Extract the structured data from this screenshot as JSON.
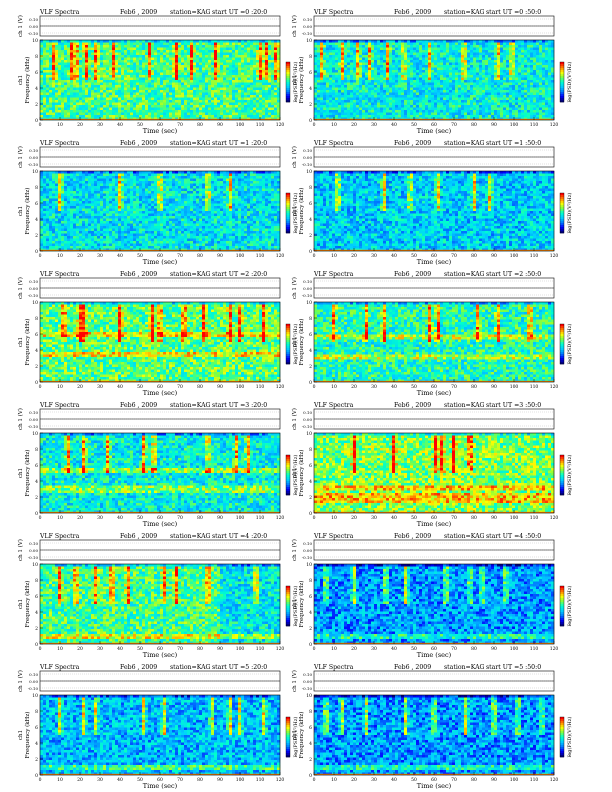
{
  "header": {
    "instrument": "VLF Spectra",
    "date": "Feb6 , 2009",
    "station": "station=KAG"
  },
  "labels": {
    "ch_axis": "ch 1 (V)",
    "freq_axis_top": "ch1",
    "freq_axis": "Frequency (kHz)",
    "time_axis": "Time (sec)",
    "colorbar": "log(PSD)(V²/Hz)",
    "colorbar_min": "-7"
  },
  "colors": {
    "background": "#2a78c8",
    "colormap": [
      "#000080",
      "#0000ff",
      "#0080ff",
      "#00d0ff",
      "#00ffcc",
      "#80ff40",
      "#ffff00",
      "#ff8000",
      "#ff0000"
    ]
  },
  "chart_data": [
    {
      "type": "heatmap",
      "start_ut": "start UT =0 :20:0",
      "xlabel": "Time (sec)",
      "ylabel": "Frequency (kHz)",
      "xlim": [
        0,
        120
      ],
      "ylim": [
        0,
        10
      ],
      "xticks": [
        0,
        10,
        20,
        30,
        40,
        50,
        60,
        70,
        80,
        90,
        100,
        110,
        120
      ],
      "yticks": [
        0,
        2,
        4,
        6,
        8,
        10
      ],
      "ch_ticks": [
        "0.10",
        "0.00",
        "-0.10"
      ],
      "intensity": 0.55,
      "red_burst_times": [
        7,
        16,
        18,
        23,
        28,
        37,
        55,
        68,
        76,
        88,
        110,
        113,
        118
      ]
    },
    {
      "type": "heatmap",
      "start_ut": "start UT =0 :50:0",
      "xlabel": "Time (sec)",
      "ylabel": "Frequency (kHz)",
      "xlim": [
        0,
        120
      ],
      "ylim": [
        0,
        10
      ],
      "xticks": [
        0,
        10,
        20,
        30,
        40,
        50,
        60,
        70,
        80,
        90,
        100,
        110,
        120
      ],
      "yticks": [
        0,
        2,
        4,
        6,
        8,
        10
      ],
      "ch_ticks": [
        "0.10",
        "0.00",
        "-0.10"
      ],
      "intensity": 0.45,
      "red_burst_times": [
        4,
        14,
        22,
        28,
        37,
        45,
        58,
        75,
        92,
        99
      ]
    },
    {
      "type": "heatmap",
      "start_ut": "start UT =1 :20:0",
      "xlabel": "Time (sec)",
      "ylabel": "Frequency (kHz)",
      "xlim": [
        0,
        120
      ],
      "ylim": [
        0,
        10
      ],
      "xticks": [
        0,
        10,
        20,
        30,
        40,
        50,
        60,
        70,
        80,
        90,
        100,
        110,
        120
      ],
      "yticks": [
        0,
        2,
        4,
        6,
        8,
        10
      ],
      "ch_ticks": [
        "0.10",
        "0.00",
        "-0.10"
      ],
      "intensity": 0.42,
      "red_burst_times": [
        10,
        40,
        60,
        84,
        95
      ]
    },
    {
      "type": "heatmap",
      "start_ut": "start UT =1 :50:0",
      "xlabel": "Time (sec)",
      "ylabel": "Frequency (kHz)",
      "xlim": [
        0,
        120
      ],
      "ylim": [
        0,
        10
      ],
      "xticks": [
        0,
        10,
        20,
        30,
        40,
        50,
        60,
        70,
        80,
        90,
        100,
        110,
        120
      ],
      "yticks": [
        0,
        2,
        4,
        6,
        8,
        10
      ],
      "ch_ticks": [
        "0.10",
        "0.00",
        "-0.10"
      ],
      "intensity": 0.38,
      "red_burst_times": [
        12,
        35,
        48,
        62,
        80,
        88
      ]
    },
    {
      "type": "heatmap",
      "start_ut": "start UT =2 :20:0",
      "xlabel": "Time (sec)",
      "ylabel": "Frequency (kHz)",
      "xlim": [
        0,
        120
      ],
      "ylim": [
        0,
        10
      ],
      "xticks": [
        0,
        10,
        20,
        30,
        40,
        50,
        60,
        70,
        80,
        90,
        100,
        110,
        120
      ],
      "yticks": [
        0,
        2,
        4,
        6,
        8,
        10
      ],
      "ch_ticks": [
        "0.10",
        "0.00",
        "-0.10"
      ],
      "intensity": 0.58,
      "red_burst_times": [
        12,
        20,
        22,
        40,
        56,
        60,
        72,
        82,
        95,
        100,
        112
      ],
      "bands_khz": [
        6.0,
        3.4
      ]
    },
    {
      "type": "heatmap",
      "start_ut": "start UT =2 :50:0",
      "xlabel": "Time (sec)",
      "ylabel": "Frequency (kHz)",
      "xlim": [
        0,
        120
      ],
      "ylim": [
        0,
        10
      ],
      "xticks": [
        0,
        10,
        20,
        30,
        40,
        50,
        60,
        70,
        80,
        90,
        100,
        110,
        120
      ],
      "yticks": [
        0,
        2,
        4,
        6,
        8,
        10
      ],
      "ch_ticks": [
        "0.10",
        "0.00",
        "-0.10"
      ],
      "intensity": 0.5,
      "red_burst_times": [
        10,
        26,
        35,
        58,
        62,
        82,
        92,
        108
      ],
      "bands_khz": [
        5.6,
        3.2
      ]
    },
    {
      "type": "heatmap",
      "start_ut": "start UT =3 :20:0",
      "xlabel": "Time (sec)",
      "ylabel": "Frequency (kHz)",
      "xlim": [
        0,
        120
      ],
      "ylim": [
        0,
        10
      ],
      "xticks": [
        0,
        10,
        20,
        30,
        40,
        50,
        60,
        70,
        80,
        90,
        100,
        110,
        120
      ],
      "yticks": [
        0,
        2,
        4,
        6,
        8,
        10
      ],
      "ch_ticks": [
        "0.10",
        "0.00",
        "-0.10"
      ],
      "intensity": 0.45,
      "red_burst_times": [
        14,
        22,
        34,
        52,
        57,
        84,
        98,
        104
      ],
      "bands_khz": [
        5.4,
        3.0
      ]
    },
    {
      "type": "heatmap",
      "start_ut": "start UT =3 :50:0",
      "xlabel": "Time (sec)",
      "ylabel": "Frequency (kHz)",
      "xlim": [
        0,
        120
      ],
      "ylim": [
        0,
        10
      ],
      "xticks": [
        0,
        10,
        20,
        30,
        40,
        50,
        60,
        70,
        80,
        90,
        100,
        110,
        120
      ],
      "yticks": [
        0,
        2,
        4,
        6,
        8,
        10
      ],
      "ch_ticks": [
        "0.10",
        "0.00",
        "-0.10"
      ],
      "intensity": 0.62,
      "red_burst_times": [
        20,
        40,
        61,
        64,
        70,
        78
      ],
      "bands_khz": [
        3.2,
        2.2,
        1.5
      ]
    },
    {
      "type": "heatmap",
      "start_ut": "start UT =4 :20:0",
      "xlabel": "Time (sec)",
      "ylabel": "Frequency (kHz)",
      "xlim": [
        0,
        120
      ],
      "ylim": [
        0,
        10
      ],
      "xticks": [
        0,
        10,
        20,
        30,
        40,
        50,
        60,
        70,
        80,
        90,
        100,
        110,
        120
      ],
      "yticks": [
        0,
        2,
        4,
        6,
        8,
        10
      ],
      "ch_ticks": [
        "0.10",
        "0.00",
        "-0.10"
      ],
      "intensity": 0.55,
      "red_burst_times": [
        10,
        18,
        28,
        36,
        44,
        62,
        68,
        84,
        108
      ],
      "dark_after_sec": 90,
      "bands_khz": [
        1.0
      ]
    },
    {
      "type": "heatmap",
      "start_ut": "start UT =4 :50:0",
      "xlabel": "Time (sec)",
      "ylabel": "Frequency (kHz)",
      "xlim": [
        0,
        120
      ],
      "ylim": [
        0,
        10
      ],
      "xticks": [
        0,
        10,
        20,
        30,
        40,
        50,
        60,
        70,
        80,
        90,
        100,
        110,
        120
      ],
      "yticks": [
        0,
        2,
        4,
        6,
        8,
        10
      ],
      "ch_ticks": [
        "0.10",
        "0.00",
        "-0.10"
      ],
      "intensity": 0.3,
      "red_burst_times": [
        6,
        20,
        36,
        46,
        66,
        78,
        84,
        96
      ],
      "bands_khz": [
        1.0
      ]
    },
    {
      "type": "heatmap",
      "start_ut": "start UT =5 :20:0",
      "xlabel": "Time (sec)",
      "ylabel": "Frequency (kHz)",
      "xlim": [
        0,
        120
      ],
      "ylim": [
        0,
        10
      ],
      "xticks": [
        0,
        10,
        20,
        30,
        40,
        50,
        60,
        70,
        80,
        90,
        100,
        110,
        120
      ],
      "yticks": [
        0,
        2,
        4,
        6,
        8,
        10
      ],
      "ch_ticks": [
        "0.10",
        "0.00",
        "-0.10"
      ],
      "intensity": 0.35,
      "red_burst_times": [
        10,
        22,
        28,
        52,
        62,
        86,
        95,
        100,
        112
      ],
      "bands_khz": [
        1.0
      ]
    },
    {
      "type": "heatmap",
      "start_ut": "start UT =5 :50:0",
      "xlabel": "Time (sec)",
      "ylabel": "Frequency (kHz)",
      "xlim": [
        0,
        120
      ],
      "ylim": [
        0,
        10
      ],
      "xticks": [
        0,
        10,
        20,
        30,
        40,
        50,
        60,
        70,
        80,
        90,
        100,
        110,
        120
      ],
      "yticks": [
        0,
        2,
        4,
        6,
        8,
        10
      ],
      "ch_ticks": [
        "0.10",
        "0.00",
        "-0.10"
      ],
      "intensity": 0.3,
      "red_burst_times": [
        6,
        14,
        26,
        46,
        60,
        76,
        90,
        102,
        114
      ],
      "bands_khz": [
        1.0
      ]
    }
  ]
}
